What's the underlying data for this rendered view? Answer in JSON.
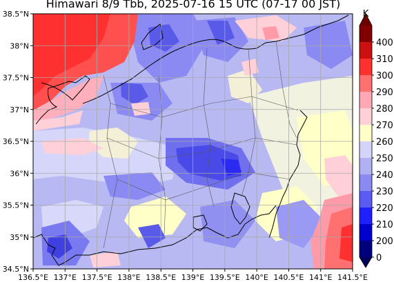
{
  "title": "Himawari 8/9 Tbb, 2025-07-16 15 UTC (07-17 00 JST)",
  "map": {
    "lon_range": [
      136.5,
      141.5
    ],
    "lat_range": [
      34.5,
      38.5
    ],
    "x_tick_labels": [
      "136.5°E",
      "137°E",
      "137.5°E",
      "138°E",
      "138.5°E",
      "139°E",
      "139.5°E",
      "140°E",
      "140.5°E",
      "141°E",
      "141.5°E"
    ],
    "y_tick_labels": [
      "34.5°N",
      "35°N",
      "35.5°N",
      "36°N",
      "36.5°N",
      "37°N",
      "37.5°N",
      "38°N",
      "38.5°N"
    ],
    "gridlines": true,
    "gridline_color": "#a0a0a0",
    "coastline_color": "#000000",
    "field_description_dominant": "blue/white cloud-top temperatures over central Honshu with warm (red) sea surface in the Sea of Japan (upper-left) and off the Pacific coast (lower-right)"
  },
  "colorbar": {
    "unit": "K",
    "extend": "both",
    "levels": [
      0,
      200,
      210,
      220,
      230,
      240,
      250,
      260,
      270,
      280,
      290,
      300,
      310,
      400
    ],
    "tick_labels": [
      "0",
      "200",
      "210",
      "220",
      "230",
      "240",
      "250",
      "260",
      "270",
      "280",
      "290",
      "300",
      "310",
      "400"
    ],
    "colors": [
      "#00007f",
      "#0000cc",
      "#2020ff",
      "#5a5af5",
      "#8a8af2",
      "#b0b0f2",
      "#d4d4fb",
      "#ffffc8",
      "#ffd0d8",
      "#ffa8b4",
      "#ff7070",
      "#ff3030",
      "#cc1010",
      "#800000"
    ],
    "under_color": "#00005a",
    "over_color": "#6a0000"
  }
}
